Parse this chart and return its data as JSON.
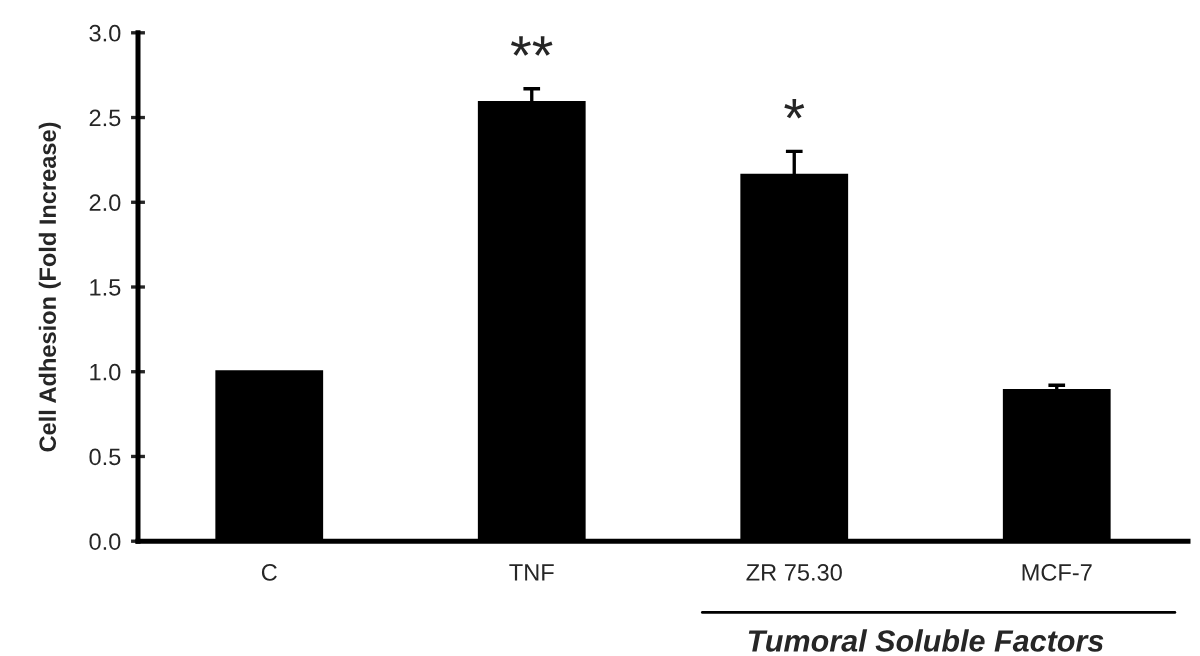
{
  "chart_data": {
    "type": "bar",
    "ylabel": "Cell Adhesion (Fold Increase)",
    "categories": [
      "C",
      "TNF",
      "ZR 75.30",
      "MCF-7"
    ],
    "values": [
      1.0,
      2.59,
      2.16,
      0.89
    ],
    "errors": [
      null,
      0.08,
      0.14,
      0.03
    ],
    "color": "#000000",
    "ylim": [
      0,
      3.0
    ],
    "yticks": [
      {
        "value": 0,
        "label": "0.0"
      },
      0.5,
      {
        "value": 1,
        "label": "1.0"
      },
      1.5,
      {
        "value": 2,
        "label": "2.0"
      },
      2.5,
      {
        "value": 3,
        "label": "3.0"
      }
    ],
    "grid": false,
    "legend": false,
    "annotations": [
      "**",
      "*",
      "Tumoral Soluble Factors"
    ]
  }
}
